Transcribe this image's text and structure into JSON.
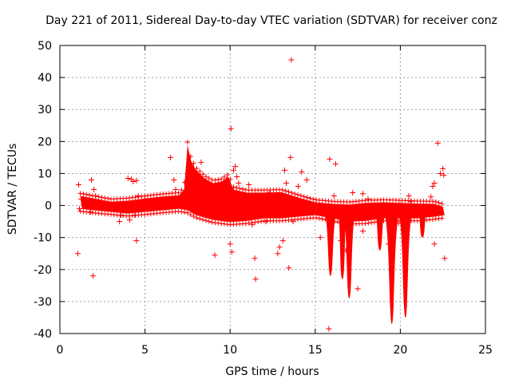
{
  "chart_data": {
    "type": "scatter",
    "title": "Day 221 of 2011, Sidereal Day-to-day VTEC variation (SDTVAR) for receiver conz",
    "xlabel": "GPS time / hours",
    "ylabel": "SDTVAR / TECUs",
    "xlim": [
      0,
      25
    ],
    "ylim": [
      -40,
      50
    ],
    "xticks": [
      0,
      5,
      10,
      15,
      20,
      25
    ],
    "yticks": [
      -40,
      -30,
      -20,
      -10,
      0,
      10,
      20,
      30,
      40,
      50
    ],
    "grid": true,
    "marker": "+",
    "color": "#ff0000",
    "series": [
      {
        "name": "SDTVAR",
        "points": [
          [
            1.05,
            -15
          ],
          [
            1.1,
            6.5
          ],
          [
            1.15,
            -1
          ],
          [
            1.25,
            2
          ],
          [
            1.4,
            0.5
          ],
          [
            1.8,
            -2
          ],
          [
            1.85,
            8
          ],
          [
            1.95,
            -22
          ],
          [
            2.0,
            5
          ],
          [
            2.1,
            3
          ],
          [
            2.3,
            1
          ],
          [
            3.5,
            -5
          ],
          [
            3.6,
            -3
          ],
          [
            4.0,
            8.5
          ],
          [
            4.1,
            -4.5
          ],
          [
            4.2,
            8.2
          ],
          [
            4.3,
            7.5
          ],
          [
            4.4,
            -3
          ],
          [
            4.5,
            7.8
          ],
          [
            4.5,
            -11
          ],
          [
            4.6,
            3
          ],
          [
            5.0,
            2
          ],
          [
            6.5,
            15
          ],
          [
            6.7,
            8
          ],
          [
            6.8,
            5
          ],
          [
            7.2,
            3
          ],
          [
            7.4,
            4
          ],
          [
            8.0,
            7
          ],
          [
            8.3,
            13.5
          ],
          [
            9.1,
            -15.5
          ],
          [
            9.5,
            5
          ],
          [
            9.8,
            8
          ],
          [
            10.0,
            -12
          ],
          [
            10.05,
            24
          ],
          [
            10.1,
            -14.5
          ],
          [
            10.2,
            11
          ],
          [
            10.3,
            12.2
          ],
          [
            10.4,
            9
          ],
          [
            10.5,
            7
          ],
          [
            11.1,
            6.5
          ],
          [
            11.2,
            -4
          ],
          [
            11.3,
            -6
          ],
          [
            11.45,
            -16.5
          ],
          [
            11.5,
            -23
          ],
          [
            11.7,
            3
          ],
          [
            12.1,
            -5
          ],
          [
            12.3,
            4
          ],
          [
            12.8,
            -15
          ],
          [
            12.9,
            -13
          ],
          [
            13.1,
            -11
          ],
          [
            13.2,
            11
          ],
          [
            13.3,
            7
          ],
          [
            13.45,
            -19.5
          ],
          [
            13.55,
            15
          ],
          [
            13.6,
            45.5
          ],
          [
            13.7,
            -5
          ],
          [
            14.0,
            6
          ],
          [
            14.2,
            10.5
          ],
          [
            14.5,
            8
          ],
          [
            15.3,
            -10
          ],
          [
            15.8,
            -38.5
          ],
          [
            15.85,
            14.5
          ],
          [
            16.2,
            13
          ],
          [
            16.1,
            3
          ],
          [
            16.5,
            -11
          ],
          [
            16.8,
            -14
          ],
          [
            17.2,
            4
          ],
          [
            17.5,
            -26
          ],
          [
            17.8,
            -8
          ],
          [
            17.8,
            3.7
          ],
          [
            18.1,
            2
          ],
          [
            19.3,
            -12
          ],
          [
            19.9,
            -5.5
          ],
          [
            20.5,
            3
          ],
          [
            20.6,
            1.2
          ],
          [
            21.8,
            2.7
          ],
          [
            21.9,
            6
          ],
          [
            22.0,
            -12
          ],
          [
            22.0,
            7
          ],
          [
            22.2,
            19.5
          ],
          [
            22.35,
            10
          ],
          [
            22.5,
            11.5
          ],
          [
            22.55,
            9.5
          ],
          [
            22.6,
            -16.5
          ]
        ]
      }
    ]
  }
}
